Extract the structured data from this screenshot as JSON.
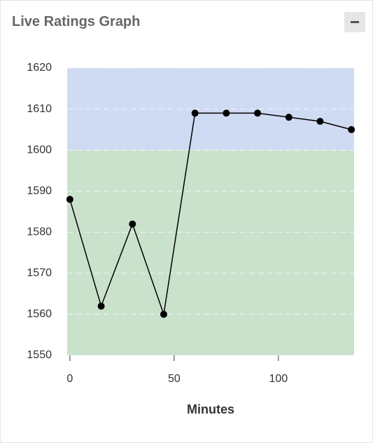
{
  "title": "Live Ratings Graph",
  "chart_data": {
    "type": "line",
    "x": [
      0,
      15,
      30,
      45,
      60,
      75,
      90,
      105,
      120,
      135
    ],
    "values": [
      1588,
      1562,
      1582,
      1560,
      1609,
      1609,
      1609,
      1608,
      1607,
      1605
    ],
    "color": "#000000",
    "xlabel": "Minutes",
    "xlim": [
      -1.3,
      136.3
    ],
    "xticks": [
      0,
      50,
      100
    ],
    "ylim": [
      1550,
      1620
    ],
    "yticks": [
      1550,
      1560,
      1570,
      1580,
      1590,
      1600,
      1610,
      1620
    ],
    "bands": [
      {
        "from": 1550,
        "to": 1600,
        "color": "#cae2cc"
      },
      {
        "from": 1600,
        "to": 1620,
        "color": "#cfdaf3"
      }
    ],
    "grid": true
  }
}
